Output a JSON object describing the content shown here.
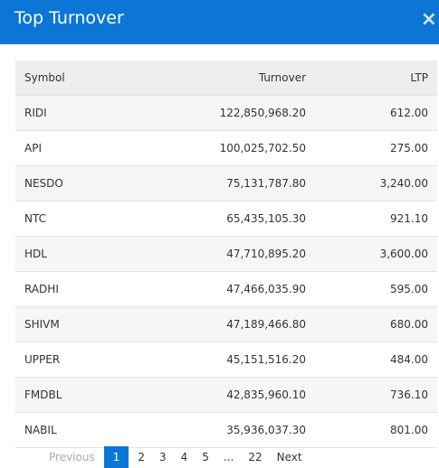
{
  "header": {
    "title": "Top Turnover",
    "close": "×"
  },
  "table": {
    "columns": [
      "Symbol",
      "Turnover",
      "LTP"
    ],
    "rows": [
      [
        "RIDI",
        "122,850,968.20",
        "612.00"
      ],
      [
        "API",
        "100,025,702.50",
        "275.00"
      ],
      [
        "NESDO",
        "75,131,787.80",
        "3,240.00"
      ],
      [
        "NTC",
        "65,435,105.30",
        "921.10"
      ],
      [
        "HDL",
        "47,710,895.20",
        "3,600.00"
      ],
      [
        "RADHI",
        "47,466,035.90",
        "595.00"
      ],
      [
        "SHIVM",
        "47,189,466.80",
        "680.00"
      ],
      [
        "UPPER",
        "45,151,516.20",
        "484.00"
      ],
      [
        "FMDBL",
        "42,835,960.10",
        "736.10"
      ],
      [
        "NABIL",
        "35,936,037.30",
        "801.00"
      ]
    ]
  },
  "pagination": {
    "previous": "Previous",
    "pages": [
      "1",
      "2",
      "3",
      "4",
      "5",
      "...",
      "22"
    ],
    "next": "Next",
    "active": "1"
  }
}
